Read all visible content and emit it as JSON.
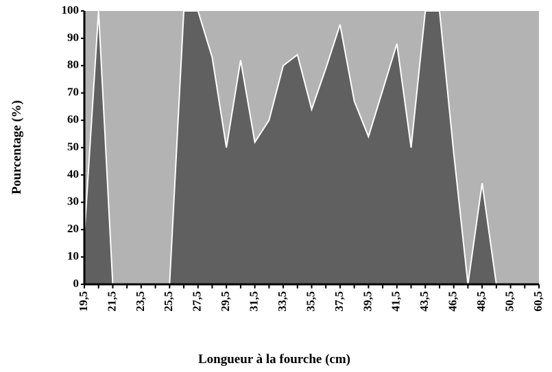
{
  "chart_data": {
    "type": "area",
    "x_label": "Longueur à la fourche (cm)",
    "y_label": "Pourcentage (%)",
    "categories": [
      "19,5",
      null,
      "21,5",
      null,
      "23,5",
      null,
      "25,5",
      null,
      "27,5",
      null,
      "29,5",
      null,
      "31,5",
      null,
      "33,5",
      null,
      "35,5",
      null,
      "37,5",
      null,
      "39,5",
      null,
      "41,5",
      null,
      "43,5",
      null,
      "46,5",
      null,
      "48,5",
      null,
      "50,5",
      null,
      "60,5"
    ],
    "values": [
      18,
      100,
      0,
      0,
      0,
      0,
      0,
      100,
      100,
      83,
      50,
      82,
      52,
      60,
      80,
      84,
      64,
      79,
      95,
      67,
      54,
      71,
      88,
      50,
      100,
      100,
      48,
      0,
      37,
      0,
      0,
      0,
      0
    ],
    "color": "#606060",
    "background": "#b3b3b3",
    "line_color": "#ffffff",
    "ylim": [
      0,
      100
    ],
    "yticks": [
      0,
      10,
      20,
      30,
      40,
      50,
      60,
      70,
      80,
      90,
      100
    ]
  }
}
